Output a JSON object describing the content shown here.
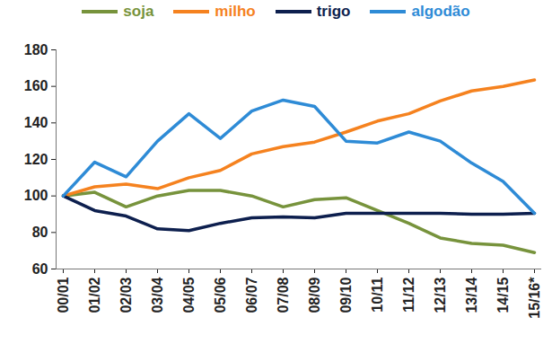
{
  "chart_data": {
    "type": "line",
    "categories": [
      "00/01",
      "01/02",
      "02/03",
      "03/04",
      "04/05",
      "05/06",
      "06/07",
      "07/08",
      "08/09",
      "09/10",
      "10/11",
      "11/12",
      "12/13",
      "13/14",
      "14/15",
      "15/16*"
    ],
    "series": [
      {
        "name": "soja",
        "color": "#77933c",
        "values": [
          100,
          102,
          94,
          100,
          103,
          103,
          100,
          94,
          98,
          99,
          92,
          85,
          77,
          74,
          73,
          69
        ]
      },
      {
        "name": "milho",
        "color": "#f5821f",
        "values": [
          100,
          105,
          106.5,
          104,
          110,
          114,
          123,
          127,
          129.5,
          135,
          141,
          145,
          152,
          157.5,
          160,
          163.5
        ]
      },
      {
        "name": "trigo",
        "color": "#0d1f4e",
        "values": [
          100,
          92,
          89,
          82,
          81,
          85,
          88,
          88.5,
          88,
          90.5,
          90.5,
          90.5,
          90.5,
          90,
          90,
          90.5
        ]
      },
      {
        "name": "algodão",
        "color": "#2e8bd6",
        "values": [
          100,
          118.5,
          110.5,
          130,
          145,
          131.5,
          146.5,
          152.5,
          149,
          130,
          129,
          135,
          130,
          118,
          108,
          90.5
        ]
      }
    ],
    "ylim": [
      60,
      180
    ],
    "yticks": [
      60,
      80,
      100,
      120,
      140,
      160,
      180
    ],
    "grid": false,
    "legend": "top"
  }
}
